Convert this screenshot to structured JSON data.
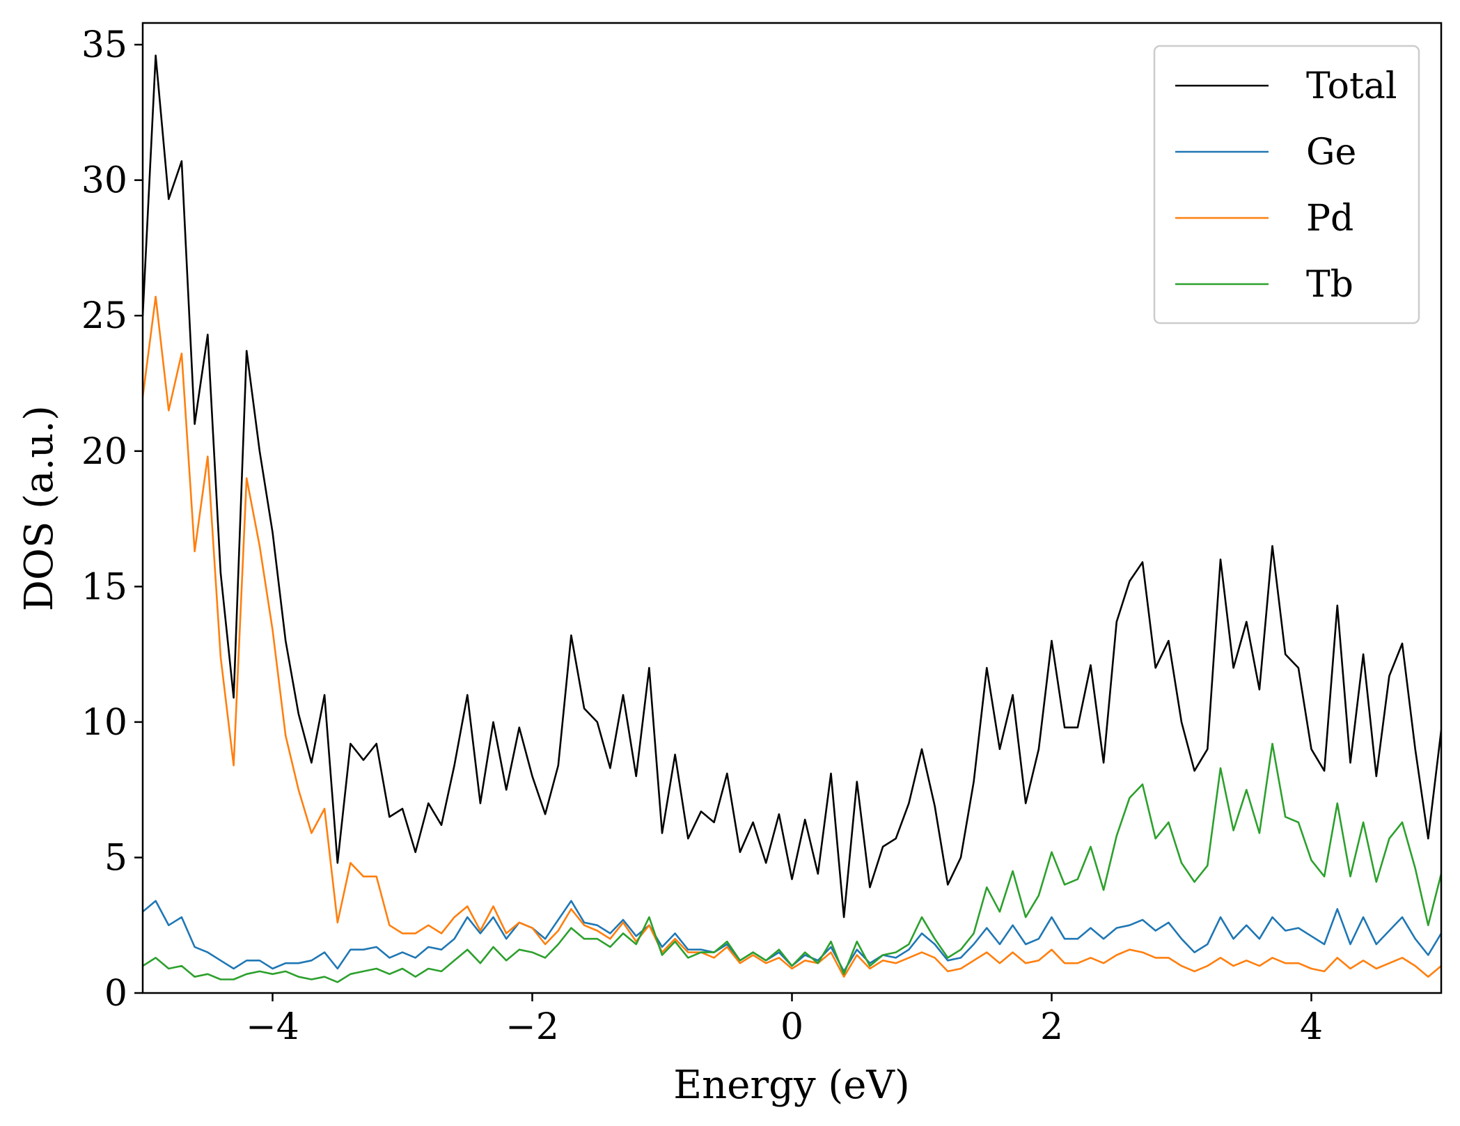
{
  "chart_data": {
    "type": "line",
    "title": "",
    "xlabel": "Energy (eV)",
    "ylabel": "DOS (a.u.)",
    "xlim": [
      -5,
      5
    ],
    "ylim": [
      0,
      35.8
    ],
    "xticks": [
      -4,
      -2,
      0,
      2,
      4
    ],
    "xtick_labels": [
      "−4",
      "−2",
      "0",
      "2",
      "4"
    ],
    "yticks": [
      0,
      5,
      10,
      15,
      20,
      25,
      30,
      35
    ],
    "ytick_labels": [
      "0",
      "5",
      "10",
      "15",
      "20",
      "25",
      "30",
      "35"
    ],
    "grid": false,
    "legend_position": "top-right",
    "x": [
      -5.0,
      -4.9,
      -4.8,
      -4.7,
      -4.6,
      -4.5,
      -4.4,
      -4.3,
      -4.2,
      -4.1,
      -4.0,
      -3.9,
      -3.8,
      -3.7,
      -3.6,
      -3.5,
      -3.4,
      -3.3,
      -3.2,
      -3.1,
      -3.0,
      -2.9,
      -2.8,
      -2.7,
      -2.6,
      -2.5,
      -2.4,
      -2.3,
      -2.2,
      -2.1,
      -2.0,
      -1.9,
      -1.8,
      -1.7,
      -1.6,
      -1.5,
      -1.4,
      -1.3,
      -1.2,
      -1.1,
      -1.0,
      -0.9,
      -0.8,
      -0.7,
      -0.6,
      -0.5,
      -0.4,
      -0.3,
      -0.2,
      -0.1,
      0.0,
      0.1,
      0.2,
      0.3,
      0.4,
      0.5,
      0.6,
      0.7,
      0.8,
      0.9,
      1.0,
      1.1,
      1.2,
      1.3,
      1.4,
      1.5,
      1.6,
      1.7,
      1.8,
      1.9,
      2.0,
      2.1,
      2.2,
      2.3,
      2.4,
      2.5,
      2.6,
      2.7,
      2.8,
      2.9,
      3.0,
      3.1,
      3.2,
      3.3,
      3.4,
      3.5,
      3.6,
      3.7,
      3.8,
      3.9,
      4.0,
      4.1,
      4.2,
      4.3,
      4.4,
      4.5,
      4.6,
      4.7,
      4.8,
      4.9,
      5.0
    ],
    "series": [
      {
        "name": "Total",
        "color": "#000000",
        "values": [
          25.0,
          34.6,
          29.3,
          30.7,
          21.0,
          24.3,
          15.5,
          10.9,
          23.7,
          20.0,
          17.0,
          13.0,
          10.3,
          8.5,
          11.0,
          4.8,
          9.2,
          8.6,
          9.2,
          6.5,
          6.8,
          5.2,
          7.0,
          6.2,
          8.4,
          11.0,
          7.0,
          10.0,
          7.5,
          9.8,
          8.0,
          6.6,
          8.4,
          13.2,
          10.5,
          10.0,
          8.3,
          11.0,
          8.0,
          12.0,
          5.9,
          8.8,
          5.7,
          6.7,
          6.3,
          8.1,
          5.2,
          6.3,
          4.8,
          6.6,
          4.2,
          6.4,
          4.4,
          8.1,
          2.8,
          7.8,
          3.9,
          5.4,
          5.7,
          7.0,
          9.0,
          6.9,
          4.0,
          5.0,
          7.8,
          12.0,
          9.0,
          11.0,
          7.0,
          9.0,
          13.0,
          9.8,
          9.8,
          12.1,
          8.5,
          13.7,
          15.2,
          15.9,
          12.0,
          13.0,
          10.0,
          8.2,
          9.0,
          16.0,
          12.0,
          13.7,
          11.2,
          16.5,
          12.5,
          12.0,
          9.0,
          8.2,
          14.3,
          8.5,
          12.5,
          8.0,
          11.7,
          12.9,
          9.0,
          5.7,
          9.7
        ]
      },
      {
        "name": "Ge",
        "color": "#1f77b4",
        "values": [
          3.0,
          3.4,
          2.5,
          2.8,
          1.7,
          1.5,
          1.2,
          0.9,
          1.2,
          1.2,
          0.9,
          1.1,
          1.1,
          1.2,
          1.5,
          0.9,
          1.6,
          1.6,
          1.7,
          1.3,
          1.5,
          1.3,
          1.7,
          1.6,
          2.0,
          2.8,
          2.2,
          2.8,
          2.0,
          2.6,
          2.4,
          2.0,
          2.7,
          3.4,
          2.6,
          2.5,
          2.2,
          2.7,
          2.1,
          2.5,
          1.7,
          2.2,
          1.6,
          1.6,
          1.5,
          1.8,
          1.2,
          1.5,
          1.2,
          1.5,
          1.0,
          1.4,
          1.2,
          1.7,
          0.8,
          1.6,
          1.1,
          1.4,
          1.3,
          1.6,
          2.2,
          1.8,
          1.2,
          1.3,
          1.8,
          2.4,
          1.8,
          2.5,
          1.8,
          2.0,
          2.8,
          2.0,
          2.0,
          2.4,
          2.0,
          2.4,
          2.5,
          2.7,
          2.3,
          2.6,
          2.0,
          1.5,
          1.8,
          2.8,
          2.0,
          2.5,
          2.0,
          2.8,
          2.3,
          2.4,
          2.1,
          1.8,
          3.1,
          1.8,
          2.8,
          1.8,
          2.3,
          2.8,
          2.0,
          1.4,
          2.2
        ]
      },
      {
        "name": "Pd",
        "color": "#ff7f0e",
        "values": [
          22.0,
          25.7,
          21.5,
          23.6,
          16.3,
          19.8,
          12.4,
          8.4,
          19.0,
          16.5,
          13.4,
          9.5,
          7.5,
          5.9,
          6.8,
          2.6,
          4.8,
          4.3,
          4.3,
          2.5,
          2.2,
          2.2,
          2.5,
          2.2,
          2.8,
          3.2,
          2.3,
          3.2,
          2.2,
          2.6,
          2.4,
          1.8,
          2.3,
          3.1,
          2.5,
          2.3,
          2.0,
          2.6,
          1.9,
          2.5,
          1.5,
          2.0,
          1.5,
          1.5,
          1.3,
          1.7,
          1.1,
          1.4,
          1.1,
          1.3,
          0.9,
          1.2,
          1.1,
          1.5,
          0.6,
          1.4,
          0.9,
          1.2,
          1.1,
          1.3,
          1.5,
          1.3,
          0.8,
          0.9,
          1.2,
          1.5,
          1.1,
          1.5,
          1.1,
          1.2,
          1.6,
          1.1,
          1.1,
          1.3,
          1.1,
          1.4,
          1.6,
          1.5,
          1.3,
          1.3,
          1.0,
          0.8,
          1.0,
          1.3,
          1.0,
          1.2,
          1.0,
          1.3,
          1.1,
          1.1,
          0.9,
          0.8,
          1.3,
          0.9,
          1.2,
          0.9,
          1.1,
          1.3,
          1.0,
          0.6,
          1.0
        ]
      },
      {
        "name": "Tb",
        "color": "#2ca02c",
        "values": [
          1.0,
          1.3,
          0.9,
          1.0,
          0.6,
          0.7,
          0.5,
          0.5,
          0.7,
          0.8,
          0.7,
          0.8,
          0.6,
          0.5,
          0.6,
          0.4,
          0.7,
          0.8,
          0.9,
          0.7,
          0.9,
          0.6,
          0.9,
          0.8,
          1.2,
          1.6,
          1.1,
          1.7,
          1.2,
          1.6,
          1.5,
          1.3,
          1.8,
          2.4,
          2.0,
          2.0,
          1.7,
          2.2,
          1.8,
          2.8,
          1.4,
          1.9,
          1.3,
          1.5,
          1.5,
          1.9,
          1.2,
          1.5,
          1.2,
          1.6,
          1.0,
          1.5,
          1.1,
          1.9,
          0.7,
          1.9,
          1.0,
          1.4,
          1.5,
          1.8,
          2.8,
          2.0,
          1.3,
          1.6,
          2.2,
          3.9,
          3.0,
          4.5,
          2.8,
          3.6,
          5.2,
          4.0,
          4.2,
          5.4,
          3.8,
          5.8,
          7.2,
          7.7,
          5.7,
          6.3,
          4.8,
          4.1,
          4.7,
          8.3,
          6.0,
          7.5,
          5.9,
          9.2,
          6.5,
          6.3,
          4.9,
          4.3,
          7.0,
          4.3,
          6.3,
          4.1,
          5.7,
          6.3,
          4.6,
          2.5,
          4.4
        ]
      }
    ]
  }
}
